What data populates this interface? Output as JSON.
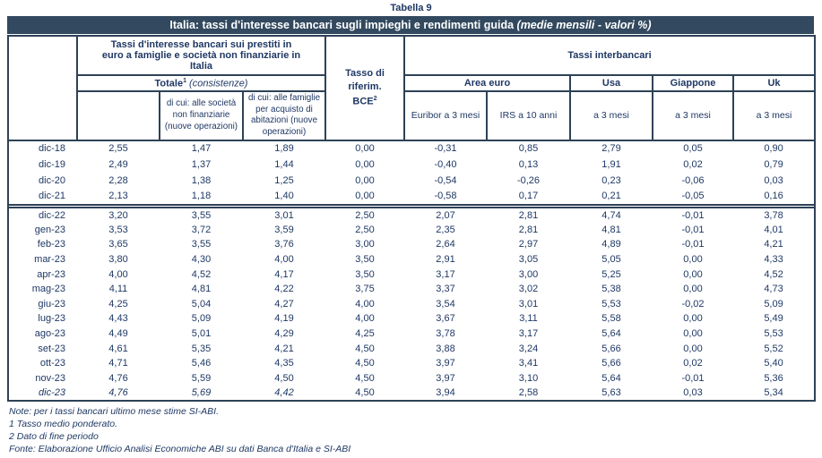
{
  "page_title": "Tabella 9",
  "colors": {
    "header_bar_bg": "#32495f",
    "border": "#2e4257",
    "text": "#1f3864"
  },
  "table": {
    "title_main": "Italia: tassi d'interesse bancari sugli impieghi e rendimenti guida ",
    "title_italic": "(medie mensili - valori %)",
    "header": {
      "loans_group": "Tassi d'interesse bancari sui prestiti in euro a famiglie e società non finanziarie in Italia",
      "totale": "Totale",
      "totale_sup": "1",
      "totale_note": " (consistenze)",
      "subcol_societa": "di cui: alle società non finanziarie (nuove operazioni)",
      "subcol_famiglie": "di cui: alle famiglie per acquisto di abitazioni (nuove operazioni)",
      "bce_line1": "Tasso di riferim.",
      "bce_line2": "BCE",
      "bce_sup": "2",
      "interbancari": "Tassi interbancari",
      "area_euro": "Area euro",
      "usa": "Usa",
      "giappone": "Giappone",
      "uk": "Uk",
      "euribor": "Euribor a 3 mesi",
      "irs": "IRS a 10 anni",
      "usa_sub": "a 3 mesi",
      "giappone_sub": "a 3 mesi",
      "uk_sub": "a 3 mesi"
    },
    "italic_value_cols": 3,
    "rows_group1": [
      {
        "label": "dic-18",
        "values": [
          "2,55",
          "1,47",
          "1,89",
          "0,00",
          "-0,31",
          "0,85",
          "2,79",
          "0,05",
          "0,90"
        ]
      },
      {
        "label": "dic-19",
        "values": [
          "2,49",
          "1,37",
          "1,44",
          "0,00",
          "-0,40",
          "0,13",
          "1,91",
          "0,02",
          "0,79"
        ]
      },
      {
        "label": "dic-20",
        "values": [
          "2,28",
          "1,38",
          "1,25",
          "0,00",
          "-0,54",
          "-0,26",
          "0,23",
          "-0,06",
          "0,03"
        ]
      },
      {
        "label": "dic-21",
        "values": [
          "2,13",
          "1,18",
          "1,40",
          "0,00",
          "-0,58",
          "0,17",
          "0,21",
          "-0,05",
          "0,16"
        ]
      }
    ],
    "rows_group2": [
      {
        "label": "dic-22",
        "values": [
          "3,20",
          "3,55",
          "3,01",
          "2,50",
          "2,07",
          "2,81",
          "4,74",
          "-0,01",
          "3,78"
        ]
      },
      {
        "label": "gen-23",
        "values": [
          "3,53",
          "3,72",
          "3,59",
          "2,50",
          "2,35",
          "2,81",
          "4,81",
          "-0,01",
          "4,01"
        ]
      },
      {
        "label": "feb-23",
        "values": [
          "3,65",
          "3,55",
          "3,76",
          "3,00",
          "2,64",
          "2,97",
          "4,89",
          "-0,01",
          "4,21"
        ]
      },
      {
        "label": "mar-23",
        "values": [
          "3,80",
          "4,30",
          "4,00",
          "3,50",
          "2,91",
          "3,05",
          "5,05",
          "0,00",
          "4,33"
        ]
      },
      {
        "label": "apr-23",
        "values": [
          "4,00",
          "4,52",
          "4,17",
          "3,50",
          "3,17",
          "3,00",
          "5,25",
          "0,00",
          "4,52"
        ]
      },
      {
        "label": "mag-23",
        "values": [
          "4,11",
          "4,81",
          "4,22",
          "3,75",
          "3,37",
          "3,02",
          "5,38",
          "0,00",
          "4,73"
        ]
      },
      {
        "label": "giu-23",
        "values": [
          "4,25",
          "5,04",
          "4,27",
          "4,00",
          "3,54",
          "3,01",
          "5,53",
          "-0,02",
          "5,09"
        ]
      },
      {
        "label": "lug-23",
        "values": [
          "4,43",
          "5,09",
          "4,19",
          "4,00",
          "3,67",
          "3,11",
          "5,58",
          "0,00",
          "5,49"
        ]
      },
      {
        "label": "ago-23",
        "values": [
          "4,49",
          "5,01",
          "4,29",
          "4,25",
          "3,78",
          "3,17",
          "5,64",
          "0,00",
          "5,53"
        ]
      },
      {
        "label": "set-23",
        "values": [
          "4,61",
          "5,35",
          "4,21",
          "4,50",
          "3,88",
          "3,24",
          "5,66",
          "0,00",
          "5,52"
        ]
      },
      {
        "label": "ott-23",
        "values": [
          "4,71",
          "5,46",
          "4,35",
          "4,50",
          "3,97",
          "3,41",
          "5,66",
          "0,02",
          "5,40"
        ]
      },
      {
        "label": "nov-23",
        "values": [
          "4,76",
          "5,59",
          "4,50",
          "4,50",
          "3,97",
          "3,10",
          "5,64",
          "-0,01",
          "5,36"
        ]
      },
      {
        "label": "dic-23",
        "italic": true,
        "values": [
          "4,76",
          "5,69",
          "4,42",
          "4,50",
          "3,94",
          "2,58",
          "5,63",
          "0,03",
          "5,34"
        ]
      }
    ]
  },
  "notes": {
    "line1": "Note: per i tassi bancari ultimo mese stime SI-ABI.",
    "line2": "1 Tasso medio ponderato.",
    "line3": "2 Dato di fine periodo",
    "line4": "Fonte: Elaborazione Ufficio Analisi Economiche ABI su dati Banca d'Italia e SI-ABI"
  }
}
